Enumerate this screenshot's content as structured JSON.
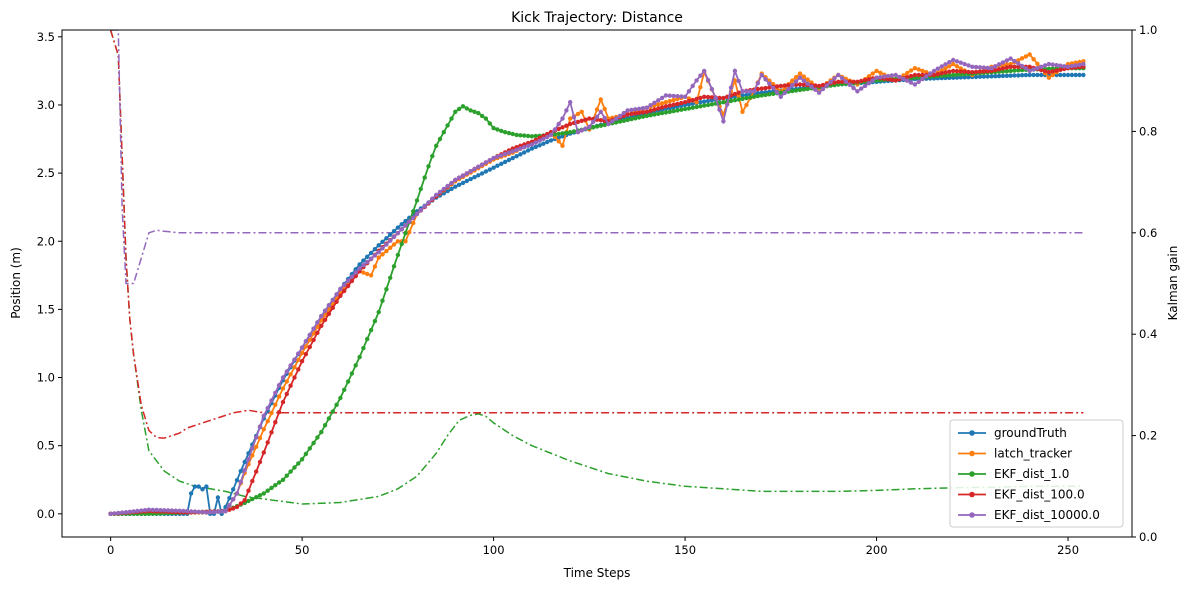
{
  "chart_data": {
    "type": "line",
    "title": "Kick Trajectory: Distance",
    "xlabel": "Time Steps",
    "ylabel": "Position (m)",
    "y2label": "Kalman gain",
    "xlim": [
      -12.7,
      266.7
    ],
    "ylim": [
      -0.17,
      3.55
    ],
    "y2lim": [
      0.0,
      1.0
    ],
    "xticks": [
      0,
      50,
      100,
      150,
      200,
      250
    ],
    "yticks": [
      0.0,
      0.5,
      1.0,
      1.5,
      2.0,
      2.5,
      3.0,
      3.5
    ],
    "y2ticks": [
      0.0,
      0.2,
      0.4,
      0.6,
      0.8,
      1.0
    ],
    "xtick_labels": [
      "0",
      "50",
      "100",
      "150",
      "200",
      "250"
    ],
    "ytick_labels": [
      "0.0",
      "0.5",
      "1.0",
      "1.5",
      "2.0",
      "2.5",
      "3.0",
      "3.5"
    ],
    "y2tick_labels": [
      "0.0",
      "0.2",
      "0.4",
      "0.6",
      "0.8",
      "1.0"
    ],
    "legend_position": "lower-right",
    "grid": false,
    "series": [
      {
        "name": "groundTruth",
        "color": "#1f77b4",
        "axis": "left",
        "style": "line-dot",
        "x": [
          0,
          10,
          20,
          21,
          22,
          23,
          24,
          25,
          26,
          27,
          28,
          29,
          30,
          32,
          35,
          40,
          45,
          50,
          55,
          60,
          65,
          70,
          75,
          80,
          85,
          90,
          95,
          100,
          105,
          110,
          115,
          120,
          130,
          140,
          150,
          160,
          170,
          180,
          190,
          200,
          210,
          220,
          230,
          240,
          254
        ],
        "y": [
          0.0,
          0.0,
          0.0,
          0.15,
          0.2,
          0.2,
          0.18,
          0.2,
          0.0,
          0.0,
          0.12,
          0.0,
          0.05,
          0.18,
          0.38,
          0.7,
          0.98,
          1.22,
          1.45,
          1.65,
          1.83,
          1.97,
          2.1,
          2.22,
          2.32,
          2.4,
          2.47,
          2.54,
          2.61,
          2.68,
          2.74,
          2.79,
          2.87,
          2.94,
          3.0,
          3.05,
          3.09,
          3.12,
          3.15,
          3.17,
          3.19,
          3.2,
          3.21,
          3.22,
          3.22
        ]
      },
      {
        "name": "latch_tracker",
        "color": "#ff7f0e",
        "axis": "left",
        "style": "line-dot",
        "x": [
          0,
          10,
          20,
          25,
          30,
          33,
          35,
          40,
          45,
          50,
          55,
          60,
          65,
          68,
          70,
          75,
          77,
          80,
          85,
          90,
          95,
          100,
          105,
          110,
          115,
          118,
          120,
          123,
          125,
          128,
          130,
          135,
          140,
          145,
          150,
          153,
          155,
          158,
          160,
          163,
          165,
          168,
          170,
          175,
          180,
          185,
          190,
          195,
          200,
          205,
          210,
          215,
          220,
          225,
          230,
          235,
          240,
          245,
          250,
          254
        ],
        "y": [
          0.0,
          0.01,
          0.01,
          0.01,
          0.02,
          0.15,
          0.3,
          0.62,
          0.92,
          1.18,
          1.42,
          1.62,
          1.78,
          1.75,
          1.88,
          2.0,
          2.0,
          2.2,
          2.33,
          2.44,
          2.52,
          2.6,
          2.65,
          2.72,
          2.8,
          2.7,
          2.9,
          2.95,
          2.82,
          3.04,
          2.9,
          2.93,
          2.98,
          3.02,
          3.06,
          3.02,
          3.24,
          3.05,
          2.93,
          3.18,
          2.95,
          3.1,
          3.23,
          3.1,
          3.23,
          3.12,
          3.22,
          3.15,
          3.25,
          3.18,
          3.27,
          3.22,
          3.3,
          3.22,
          3.28,
          3.3,
          3.37,
          3.2,
          3.3,
          3.32
        ]
      },
      {
        "name": "EKF_dist_1.0",
        "color": "#2ca02c",
        "axis": "left",
        "style": "line-dot",
        "x": [
          0,
          10,
          20,
          30,
          35,
          40,
          45,
          50,
          55,
          60,
          65,
          70,
          75,
          80,
          83,
          85,
          88,
          90,
          92,
          94,
          96,
          98,
          100,
          103,
          106,
          110,
          115,
          120,
          130,
          140,
          150,
          160,
          170,
          180,
          190,
          200,
          210,
          220,
          230,
          240,
          250,
          254
        ],
        "y": [
          0.0,
          0.0,
          0.01,
          0.02,
          0.08,
          0.15,
          0.25,
          0.4,
          0.6,
          0.85,
          1.15,
          1.48,
          1.9,
          2.3,
          2.55,
          2.7,
          2.85,
          2.95,
          2.99,
          2.96,
          2.94,
          2.9,
          2.83,
          2.8,
          2.78,
          2.77,
          2.78,
          2.8,
          2.86,
          2.92,
          2.97,
          3.02,
          3.07,
          3.11,
          3.15,
          3.18,
          3.2,
          3.22,
          3.24,
          3.26,
          3.27,
          3.27
        ]
      },
      {
        "name": "EKF_dist_100.0",
        "color": "#d62728",
        "axis": "left",
        "style": "line-dot",
        "x": [
          0,
          10,
          20,
          30,
          33,
          35,
          40,
          45,
          50,
          55,
          60,
          65,
          70,
          75,
          80,
          85,
          90,
          95,
          100,
          105,
          110,
          115,
          120,
          125,
          130,
          135,
          140,
          145,
          150,
          155,
          160,
          165,
          170,
          175,
          180,
          185,
          190,
          195,
          200,
          205,
          210,
          215,
          220,
          225,
          230,
          235,
          240,
          245,
          250,
          254
        ],
        "y": [
          0.0,
          0.02,
          0.01,
          0.02,
          0.05,
          0.1,
          0.45,
          0.82,
          1.12,
          1.38,
          1.6,
          1.78,
          1.93,
          2.06,
          2.2,
          2.33,
          2.45,
          2.53,
          2.61,
          2.68,
          2.73,
          2.8,
          2.86,
          2.9,
          2.88,
          2.93,
          2.95,
          2.99,
          3.02,
          3.06,
          3.05,
          3.1,
          3.12,
          3.14,
          3.15,
          3.14,
          3.17,
          3.17,
          3.2,
          3.18,
          3.22,
          3.22,
          3.25,
          3.24,
          3.25,
          3.28,
          3.28,
          3.24,
          3.27,
          3.28
        ]
      },
      {
        "name": "EKF_dist_10000.0",
        "color": "#9467bd",
        "axis": "left",
        "style": "line-dot",
        "x": [
          0,
          10,
          20,
          25,
          30,
          33,
          35,
          40,
          45,
          50,
          55,
          60,
          65,
          70,
          75,
          80,
          85,
          90,
          95,
          100,
          105,
          110,
          115,
          118,
          120,
          122,
          125,
          128,
          130,
          135,
          140,
          145,
          150,
          153,
          155,
          158,
          160,
          163,
          165,
          168,
          170,
          175,
          180,
          185,
          190,
          195,
          200,
          205,
          210,
          215,
          220,
          225,
          230,
          235,
          240,
          245,
          250,
          254
        ],
        "y": [
          0.0,
          0.03,
          0.02,
          0.01,
          0.02,
          0.15,
          0.32,
          0.72,
          1.0,
          1.22,
          1.45,
          1.65,
          1.8,
          1.92,
          2.06,
          2.2,
          2.34,
          2.45,
          2.53,
          2.61,
          2.66,
          2.71,
          2.78,
          2.9,
          3.02,
          2.8,
          2.84,
          2.95,
          2.86,
          2.96,
          2.98,
          3.07,
          3.06,
          3.18,
          3.25,
          3.05,
          2.88,
          3.25,
          3.1,
          3.1,
          3.22,
          3.06,
          3.2,
          3.09,
          3.22,
          3.1,
          3.2,
          3.22,
          3.15,
          3.25,
          3.33,
          3.28,
          3.27,
          3.34,
          3.25,
          3.3,
          3.28,
          3.3
        ]
      },
      {
        "color": "#2ca02c",
        "axis": "right",
        "style": "dashdot",
        "x": [
          0,
          2,
          4,
          5,
          6,
          8,
          10,
          14,
          18,
          22,
          26,
          30,
          35,
          40,
          50,
          60,
          70,
          75,
          80,
          85,
          88,
          91,
          94,
          96,
          98,
          100,
          105,
          110,
          120,
          130,
          140,
          150,
          160,
          170,
          180,
          190,
          200,
          210,
          220,
          230,
          240,
          250,
          254
        ],
        "y": [
          1.0,
          0.95,
          0.55,
          0.43,
          0.36,
          0.25,
          0.17,
          0.13,
          0.11,
          0.1,
          0.095,
          0.09,
          0.08,
          0.075,
          0.065,
          0.068,
          0.08,
          0.095,
          0.12,
          0.165,
          0.2,
          0.23,
          0.24,
          0.243,
          0.238,
          0.225,
          0.2,
          0.18,
          0.15,
          0.125,
          0.11,
          0.1,
          0.095,
          0.09,
          0.09,
          0.09,
          0.092,
          0.095,
          0.097,
          0.098,
          0.1,
          0.1,
          0.1
        ]
      },
      {
        "color": "#d62728",
        "axis": "right",
        "style": "dashdot",
        "x": [
          0,
          2,
          4,
          5,
          6,
          8,
          10,
          12,
          14,
          16,
          18,
          20,
          24,
          28,
          32,
          36,
          40,
          50,
          100,
          150,
          200,
          254
        ],
        "y": [
          1.0,
          0.95,
          0.55,
          0.43,
          0.36,
          0.26,
          0.21,
          0.196,
          0.195,
          0.2,
          0.205,
          0.215,
          0.225,
          0.235,
          0.245,
          0.25,
          0.245,
          0.245,
          0.245,
          0.245,
          0.245,
          0.245
        ]
      },
      {
        "color": "#9467bd",
        "axis": "right",
        "style": "dashdot",
        "x": [
          0,
          1,
          2,
          3,
          4,
          5,
          6,
          8,
          10,
          12,
          14,
          18,
          25,
          50,
          100,
          150,
          200,
          254
        ],
        "y": [
          1.0,
          1.0,
          1.0,
          0.65,
          0.5,
          0.5,
          0.5,
          0.55,
          0.6,
          0.605,
          0.603,
          0.6,
          0.6,
          0.6,
          0.6,
          0.6,
          0.6,
          0.6
        ]
      }
    ]
  }
}
